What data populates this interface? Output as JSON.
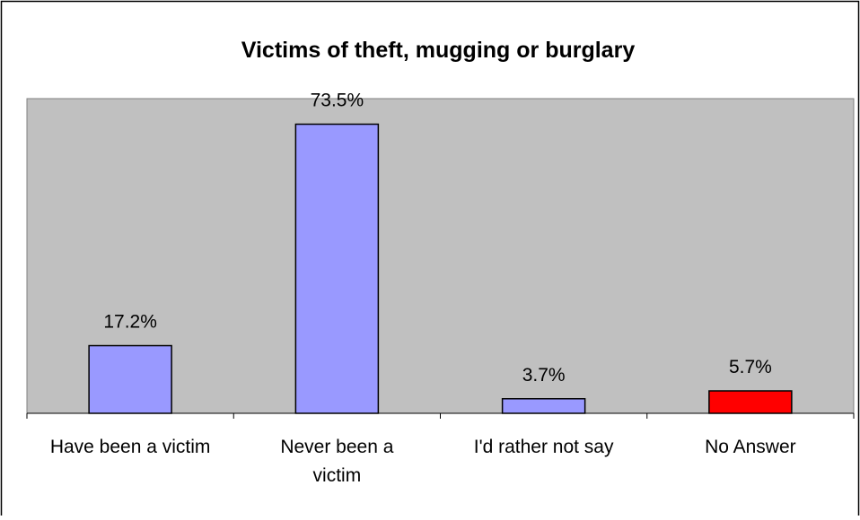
{
  "chart_data": {
    "type": "bar",
    "title": "Victims of theft, mugging or burglary",
    "categories": [
      "Have been a victim",
      "Never been a victim",
      "I'd rather not say",
      "No Answer"
    ],
    "category_lines": [
      [
        "Have been a victim"
      ],
      [
        "Never been a",
        "victim"
      ],
      [
        "I'd rather not say"
      ],
      [
        "No Answer"
      ]
    ],
    "values": [
      17.2,
      73.5,
      3.7,
      5.7
    ],
    "data_labels": [
      "17.2%",
      "73.5%",
      "3.7%",
      "5.7%"
    ],
    "ylim": [
      0,
      80
    ],
    "xlabel": "",
    "ylabel": "",
    "grid": false,
    "colors": {
      "plot_background": "#c0c0c0",
      "bars": [
        "#9999ff",
        "#9999ff",
        "#9999ff",
        "#ff0000"
      ],
      "bar_outline": "#000000",
      "frame": "#000000"
    }
  }
}
